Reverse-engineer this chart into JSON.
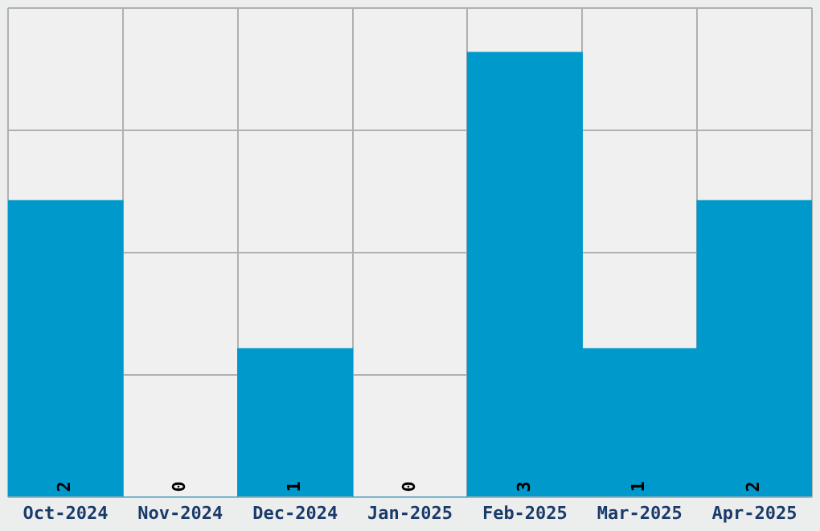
{
  "chart_data": {
    "type": "bar",
    "categories": [
      "Oct-2024",
      "Nov-2024",
      "Dec-2024",
      "Jan-2025",
      "Feb-2025",
      "Mar-2025",
      "Apr-2025"
    ],
    "values": [
      2,
      0,
      1,
      0,
      3,
      1,
      2
    ],
    "color": "#0099cc",
    "ylim": [
      0,
      3.3
    ],
    "yticks": [
      {
        "value": 0,
        "label": null
      },
      {
        "value": 0.825,
        "label": null
      },
      {
        "value": 1.65,
        "label": null
      },
      {
        "value": 2.475,
        "label": null
      },
      {
        "value": 3.3,
        "label": null
      }
    ],
    "tick_labels": "x",
    "grid": true,
    "data_labels": true
  }
}
